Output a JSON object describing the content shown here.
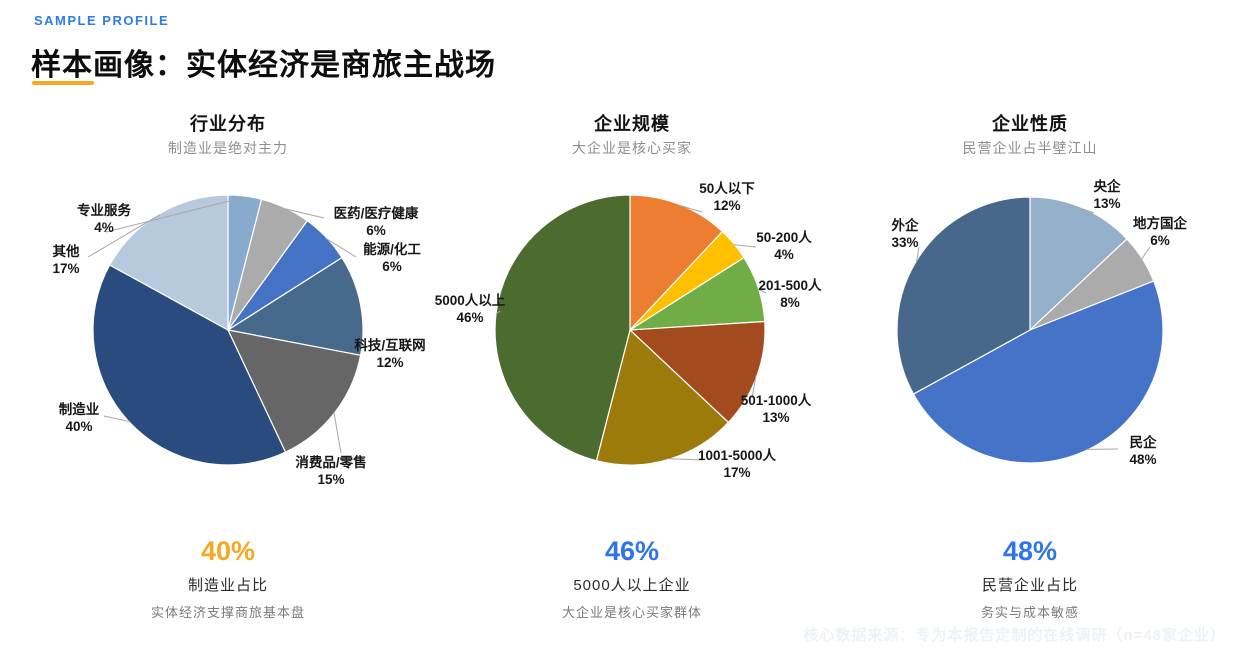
{
  "header": {
    "eyebrow": "SAMPLE PROFILE",
    "eyebrow_color": "#2E7CE8",
    "title": "样本画像：实体经济是商旅主战场",
    "accent_color": "#F7A823"
  },
  "chart_data": [
    {
      "type": "pie",
      "title": "行业分布",
      "subtitle": "制造业是绝对主力",
      "unit": "%",
      "start_angle_deg": 0,
      "direction": "clockwise",
      "legend_position": "outside-callouts",
      "slices": [
        {
          "label": "专业服务",
          "value": 4,
          "color": "#87AACE"
        },
        {
          "label": "医药/医疗健康",
          "value": 6,
          "color": "#ABABAB"
        },
        {
          "label": "能源/化工",
          "value": 6,
          "color": "#4472C4"
        },
        {
          "label": "科技/互联网",
          "value": 12,
          "color": "#46698C"
        },
        {
          "label": "消费品/零售",
          "value": 15,
          "color": "#666666"
        },
        {
          "label": "制造业",
          "value": 40,
          "color": "#2A4B7D"
        },
        {
          "label": "其他",
          "value": 17,
          "color": "#B7C9DC"
        }
      ]
    },
    {
      "type": "pie",
      "title": "企业规模",
      "subtitle": "大企业是核心买家",
      "unit": "%",
      "start_angle_deg": 0,
      "direction": "clockwise",
      "legend_position": "outside-callouts",
      "slices": [
        {
          "label": "50人以下",
          "value": 12,
          "color": "#ED7D31"
        },
        {
          "label": "50-200人",
          "value": 4,
          "color": "#FFC000"
        },
        {
          "label": "201-500人",
          "value": 8,
          "color": "#70AD47"
        },
        {
          "label": "501-1000人",
          "value": 13,
          "color": "#A34A1E"
        },
        {
          "label": "1001-5000人",
          "value": 17,
          "color": "#9C7B0B"
        },
        {
          "label": "5000人以上",
          "value": 46,
          "color": "#4C6B2F"
        }
      ]
    },
    {
      "type": "pie",
      "title": "企业性质",
      "subtitle": "民营企业占半壁江山",
      "unit": "%",
      "start_angle_deg": 0,
      "direction": "clockwise",
      "legend_position": "outside-callouts",
      "slices": [
        {
          "label": "央企",
          "value": 13,
          "color": "#93AFC9"
        },
        {
          "label": "地方国企",
          "value": 6,
          "color": "#ABABAB"
        },
        {
          "label": "民企",
          "value": 48,
          "color": "#4573C8"
        },
        {
          "label": "外企",
          "value": 33,
          "color": "#47688A"
        }
      ]
    }
  ],
  "stats": [
    {
      "value": "40%",
      "color": "#F7A823",
      "label": "制造业占比",
      "sublabel": "实体经济支撑商旅基本盘"
    },
    {
      "value": "46%",
      "color": "#2E74EE",
      "label": "5000人以上企业",
      "sublabel": "大企业是核心买家群体"
    },
    {
      "value": "48%",
      "color": "#2E74EE",
      "label": "民营企业占比",
      "sublabel": "务实与成本敏感"
    }
  ],
  "footer": {
    "source_note": "核心数据来源：专为本报告定制的在线调研（n=48家企业）"
  }
}
